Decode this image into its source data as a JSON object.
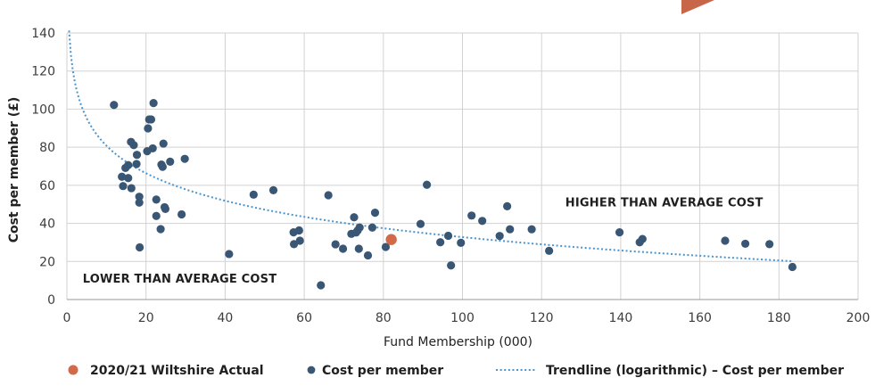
{
  "chart_data": {
    "type": "scatter",
    "xlabel": "Fund Membership (000)",
    "ylabel": "Cost per member (£)",
    "xlim": [
      0,
      200
    ],
    "ylim": [
      0,
      140
    ],
    "x_ticks": [
      0,
      20,
      40,
      60,
      80,
      100,
      120,
      140,
      160,
      180,
      200
    ],
    "y_ticks": [
      0,
      20,
      40,
      60,
      80,
      100,
      120,
      140
    ],
    "grid": true,
    "legend_position": "bottom",
    "annotations": [
      {
        "text": "HIGHER THAN AVERAGE COST",
        "x": 126,
        "y": 49
      },
      {
        "text": "LOWER THAN AVERAGE COST",
        "x": 4,
        "y": 9
      }
    ],
    "series": [
      {
        "name": "2020/21 Wiltshire Actual",
        "kind": "point",
        "color": "#d2694b",
        "points": [
          [
            82,
            31.5
          ]
        ]
      },
      {
        "name": "Cost per member",
        "kind": "point",
        "color": "#3a5675",
        "points": [
          [
            11.9,
            102.2
          ],
          [
            13.9,
            64.5
          ],
          [
            14.2,
            59.6
          ],
          [
            14.8,
            69.1
          ],
          [
            15.5,
            70.6
          ],
          [
            15.5,
            63.8
          ],
          [
            16.2,
            82.8
          ],
          [
            16.3,
            58.5
          ],
          [
            16.9,
            81.1
          ],
          [
            17.6,
            71.2
          ],
          [
            17.7,
            76.0
          ],
          [
            18.3,
            54.0
          ],
          [
            18.3,
            50.9
          ],
          [
            18.4,
            27.4
          ],
          [
            20.3,
            77.9
          ],
          [
            20.5,
            89.9
          ],
          [
            20.8,
            94.6
          ],
          [
            21.3,
            94.6
          ],
          [
            21.7,
            79.4
          ],
          [
            21.9,
            103.2
          ],
          [
            22.6,
            52.5
          ],
          [
            22.6,
            43.9
          ],
          [
            23.7,
            37.0
          ],
          [
            23.9,
            70.9
          ],
          [
            24.2,
            69.7
          ],
          [
            24.4,
            81.9
          ],
          [
            24.7,
            48.5
          ],
          [
            24.9,
            47.6
          ],
          [
            26.1,
            72.4
          ],
          [
            29.0,
            44.7
          ],
          [
            29.8,
            73.9
          ],
          [
            41.0,
            23.9
          ],
          [
            47.2,
            55.1
          ],
          [
            52.2,
            57.4
          ],
          [
            57.3,
            35.3
          ],
          [
            57.4,
            29.1
          ],
          [
            58.7,
            36.3
          ],
          [
            58.9,
            30.9
          ],
          [
            64.2,
            7.5
          ],
          [
            66.1,
            54.8
          ],
          [
            67.9,
            29.0
          ],
          [
            69.8,
            26.7
          ],
          [
            71.9,
            34.5
          ],
          [
            72.6,
            43.2
          ],
          [
            73.1,
            35.2
          ],
          [
            73.5,
            36.3
          ],
          [
            73.8,
            26.7
          ],
          [
            74.0,
            37.8
          ],
          [
            76.1,
            23.2
          ],
          [
            77.2,
            37.8
          ],
          [
            77.9,
            45.6
          ],
          [
            80.6,
            27.6
          ],
          [
            89.4,
            39.7
          ],
          [
            91.0,
            60.3
          ],
          [
            94.4,
            30.1
          ],
          [
            96.4,
            33.5
          ],
          [
            97.1,
            17.9
          ],
          [
            99.6,
            29.8
          ],
          [
            102.3,
            44.1
          ],
          [
            105.0,
            41.3
          ],
          [
            109.4,
            33.4
          ],
          [
            111.3,
            49.0
          ],
          [
            112.0,
            36.9
          ],
          [
            117.5,
            36.9
          ],
          [
            121.9,
            25.6
          ],
          [
            139.7,
            35.3
          ],
          [
            144.8,
            30.1
          ],
          [
            145.5,
            31.8
          ],
          [
            166.4,
            30.9
          ],
          [
            171.5,
            29.3
          ],
          [
            177.6,
            29.1
          ],
          [
            183.4,
            17.1
          ]
        ]
      },
      {
        "name": "Trendline (logarithmic) – Cost per member",
        "kind": "trendline",
        "color": "#4a95cf",
        "equation": "y = 128.8 - 20.85 * ln(x)"
      }
    ]
  },
  "decor": {
    "corner_shape": {
      "name": "corner-triangle",
      "color": "#c8664a"
    }
  }
}
